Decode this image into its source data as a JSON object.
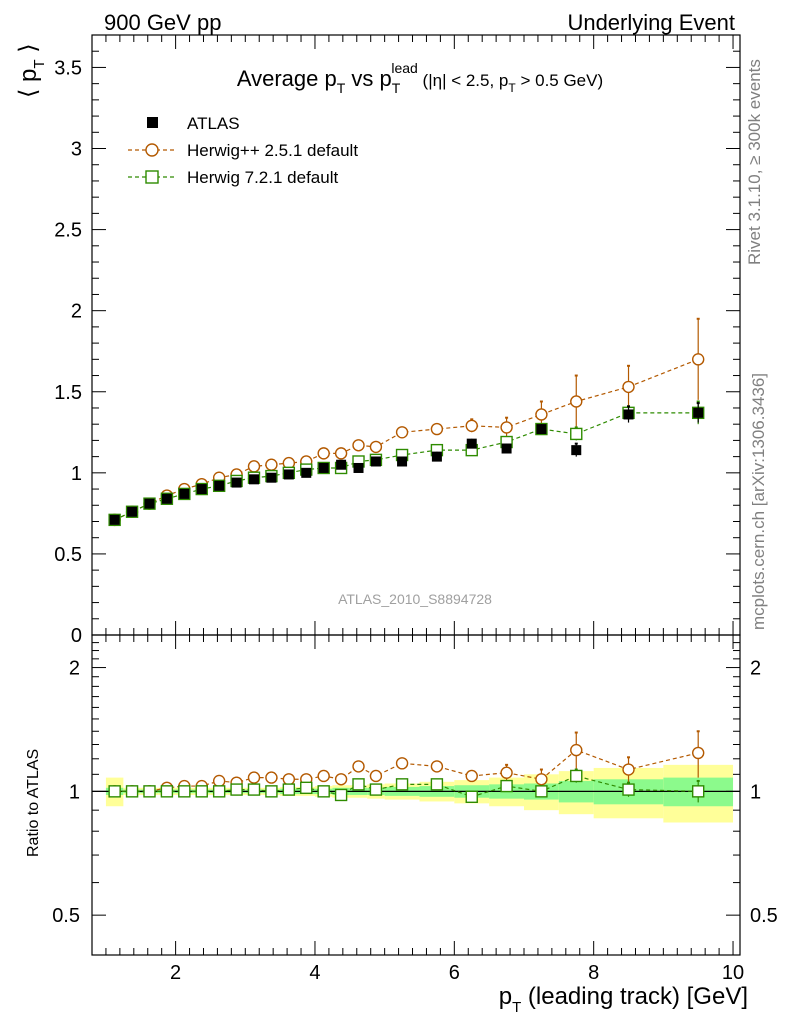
{
  "header": {
    "left": "900 GeV pp",
    "right": "Underlying Event"
  },
  "plot_title": {
    "main": "Average p",
    "main_sub": "T",
    "vs": " vs p",
    "vs_sub": "T",
    "vs_sup": "lead",
    "cuts_open": " (|η| < 2.5, p",
    "cuts_sub": "T",
    "cuts_close": " > 0.5 GeV)"
  },
  "side_labels": {
    "rivet": "Rivet 3.1.10, ≥ 300k events",
    "mcplots": "mcplots.cern.ch [arXiv:1306.3436]"
  },
  "analysis_id": "ATLAS_2010_S8894728",
  "ylabel_main": {
    "open": "⟨ p",
    "sub": "T",
    "close": " ⟩"
  },
  "ylabel_ratio": "Ratio to ATLAS",
  "xlabel": {
    "p": "p",
    "sub": "T",
    "rest": " (leading track) [GeV]"
  },
  "legend": [
    {
      "label": "ATLAS",
      "color": "#000000",
      "marker": "filled-square"
    },
    {
      "label": "Herwig++ 2.5.1 default",
      "color": "#b35900",
      "marker": "open-circle"
    },
    {
      "label": "Herwig 7.2.1 default",
      "color": "#2e8b00",
      "marker": "open-square"
    }
  ],
  "colors": {
    "band_outer": "#ffff99",
    "band_inner": "#8cfa8c"
  },
  "chart_data": [
    {
      "type": "scatter",
      "panel": "main",
      "title": "Average pT vs pT lead (|η| < 2.5, pT > 0.5 GeV)",
      "xlabel": "pT (leading track) [GeV]",
      "ylabel": "⟨ pT ⟩",
      "xlim": [
        0.8,
        10.1
      ],
      "ylim": [
        0,
        3.7
      ],
      "yticks": [
        0,
        0.5,
        1,
        1.5,
        2,
        2.5,
        3,
        3.5
      ],
      "yticklabels": [
        "0",
        "0.5",
        "1",
        "1.5",
        "2",
        "2.5",
        "3",
        "3.5"
      ],
      "x": [
        1.125,
        1.375,
        1.625,
        1.875,
        2.125,
        2.375,
        2.625,
        2.875,
        3.125,
        3.375,
        3.625,
        3.875,
        4.125,
        4.375,
        4.625,
        4.875,
        5.25,
        5.75,
        6.25,
        6.75,
        7.25,
        7.75,
        8.5,
        9.5
      ],
      "series": [
        {
          "name": "ATLAS",
          "values": [
            0.71,
            0.76,
            0.81,
            0.84,
            0.87,
            0.9,
            0.92,
            0.94,
            0.96,
            0.97,
            0.99,
            1.0,
            1.03,
            1.05,
            1.03,
            1.07,
            1.07,
            1.1,
            1.18,
            1.15,
            1.27,
            1.14,
            1.36,
            1.37
          ],
          "errors": [
            0.01,
            0.01,
            0.01,
            0.01,
            0.01,
            0.01,
            0.01,
            0.01,
            0.01,
            0.01,
            0.01,
            0.02,
            0.02,
            0.02,
            0.02,
            0.02,
            0.02,
            0.03,
            0.03,
            0.03,
            0.03,
            0.04,
            0.05,
            0.06
          ]
        },
        {
          "name": "Herwig++ 2.5.1 default",
          "values": [
            0.71,
            0.76,
            0.81,
            0.86,
            0.9,
            0.93,
            0.97,
            0.99,
            1.04,
            1.05,
            1.06,
            1.07,
            1.12,
            1.12,
            1.17,
            1.16,
            1.25,
            1.27,
            1.29,
            1.28,
            1.36,
            1.44,
            1.53,
            1.7
          ],
          "errors": [
            0.01,
            0.01,
            0.01,
            0.01,
            0.01,
            0.01,
            0.01,
            0.01,
            0.01,
            0.01,
            0.02,
            0.02,
            0.02,
            0.02,
            0.02,
            0.02,
            0.02,
            0.03,
            0.04,
            0.06,
            0.08,
            0.16,
            0.13,
            0.25
          ]
        },
        {
          "name": "Herwig 7.2.1 default",
          "values": [
            0.71,
            0.76,
            0.81,
            0.84,
            0.87,
            0.9,
            0.92,
            0.95,
            0.97,
            0.98,
            1.0,
            1.02,
            1.03,
            1.03,
            1.07,
            1.08,
            1.11,
            1.14,
            1.14,
            1.19,
            1.27,
            1.24,
            1.37,
            1.37
          ],
          "errors": [
            0.01,
            0.01,
            0.01,
            0.01,
            0.01,
            0.01,
            0.01,
            0.01,
            0.01,
            0.01,
            0.01,
            0.01,
            0.01,
            0.02,
            0.02,
            0.02,
            0.02,
            0.02,
            0.02,
            0.03,
            0.03,
            0.04,
            0.04,
            0.07
          ]
        }
      ]
    },
    {
      "type": "scatter",
      "panel": "ratio",
      "xlabel": "pT (leading track) [GeV]",
      "ylabel": "Ratio to ATLAS",
      "xlim": [
        0.8,
        10.1
      ],
      "ylim": [
        0.4,
        2.4
      ],
      "yscale": "log",
      "yticks": [
        0.5,
        1,
        2
      ],
      "yticklabels": [
        "0.5",
        "1",
        "2"
      ],
      "xticks": [
        2,
        4,
        6,
        8,
        10
      ],
      "xticklabels": [
        "2",
        "4",
        "6",
        "8",
        "10"
      ],
      "bins": [
        [
          1.0,
          1.25
        ],
        [
          1.25,
          1.5
        ],
        [
          1.5,
          1.75
        ],
        [
          1.75,
          2.0
        ],
        [
          2.0,
          2.25
        ],
        [
          2.25,
          2.5
        ],
        [
          2.5,
          2.75
        ],
        [
          2.75,
          3.0
        ],
        [
          3.0,
          3.25
        ],
        [
          3.25,
          3.5
        ],
        [
          3.5,
          3.75
        ],
        [
          3.75,
          4.0
        ],
        [
          4.0,
          4.25
        ],
        [
          4.25,
          4.5
        ],
        [
          4.5,
          4.75
        ],
        [
          4.75,
          5.0
        ],
        [
          5.0,
          5.5
        ],
        [
          5.5,
          6.0
        ],
        [
          6.0,
          6.5
        ],
        [
          6.5,
          7.0
        ],
        [
          7.0,
          7.5
        ],
        [
          7.5,
          8.0
        ],
        [
          8.0,
          9.0
        ],
        [
          9.0,
          10.0
        ]
      ],
      "band_inner": [
        0.02,
        0.01,
        0.01,
        0.01,
        0.01,
        0.01,
        0.01,
        0.01,
        0.01,
        0.01,
        0.015,
        0.015,
        0.015,
        0.02,
        0.02,
        0.02,
        0.025,
        0.03,
        0.035,
        0.04,
        0.045,
        0.06,
        0.07,
        0.08
      ],
      "band_outer": [
        0.08,
        0.02,
        0.02,
        0.02,
        0.02,
        0.02,
        0.02,
        0.02,
        0.02,
        0.02,
        0.025,
        0.025,
        0.03,
        0.035,
        0.035,
        0.04,
        0.045,
        0.055,
        0.065,
        0.08,
        0.1,
        0.12,
        0.14,
        0.16
      ],
      "x": [
        1.125,
        1.375,
        1.625,
        1.875,
        2.125,
        2.375,
        2.625,
        2.875,
        3.125,
        3.375,
        3.625,
        3.875,
        4.125,
        4.375,
        4.625,
        4.875,
        5.25,
        5.75,
        6.25,
        6.75,
        7.25,
        7.75,
        8.5,
        9.5
      ],
      "series": [
        {
          "name": "Herwig++ 2.5.1 default",
          "values": [
            1.0,
            1.0,
            1.0,
            1.02,
            1.03,
            1.03,
            1.06,
            1.05,
            1.08,
            1.08,
            1.07,
            1.07,
            1.09,
            1.07,
            1.15,
            1.09,
            1.17,
            1.15,
            1.09,
            1.11,
            1.07,
            1.26,
            1.13,
            1.24
          ],
          "errors": [
            0.01,
            0.01,
            0.01,
            0.01,
            0.01,
            0.01,
            0.01,
            0.01,
            0.01,
            0.01,
            0.01,
            0.01,
            0.01,
            0.02,
            0.02,
            0.02,
            0.02,
            0.02,
            0.03,
            0.05,
            0.06,
            0.13,
            0.08,
            0.16
          ]
        },
        {
          "name": "Herwig 7.2.1 default",
          "values": [
            1.0,
            1.0,
            1.0,
            1.0,
            1.0,
            1.0,
            1.0,
            1.01,
            1.01,
            1.0,
            1.01,
            1.02,
            1.0,
            0.98,
            1.04,
            1.01,
            1.04,
            1.04,
            0.97,
            1.03,
            1.0,
            1.09,
            1.01,
            1.0
          ],
          "errors": [
            0.01,
            0.01,
            0.01,
            0.01,
            0.01,
            0.01,
            0.01,
            0.01,
            0.01,
            0.01,
            0.01,
            0.01,
            0.01,
            0.01,
            0.01,
            0.01,
            0.02,
            0.02,
            0.02,
            0.03,
            0.03,
            0.04,
            0.04,
            0.06
          ]
        }
      ]
    }
  ]
}
